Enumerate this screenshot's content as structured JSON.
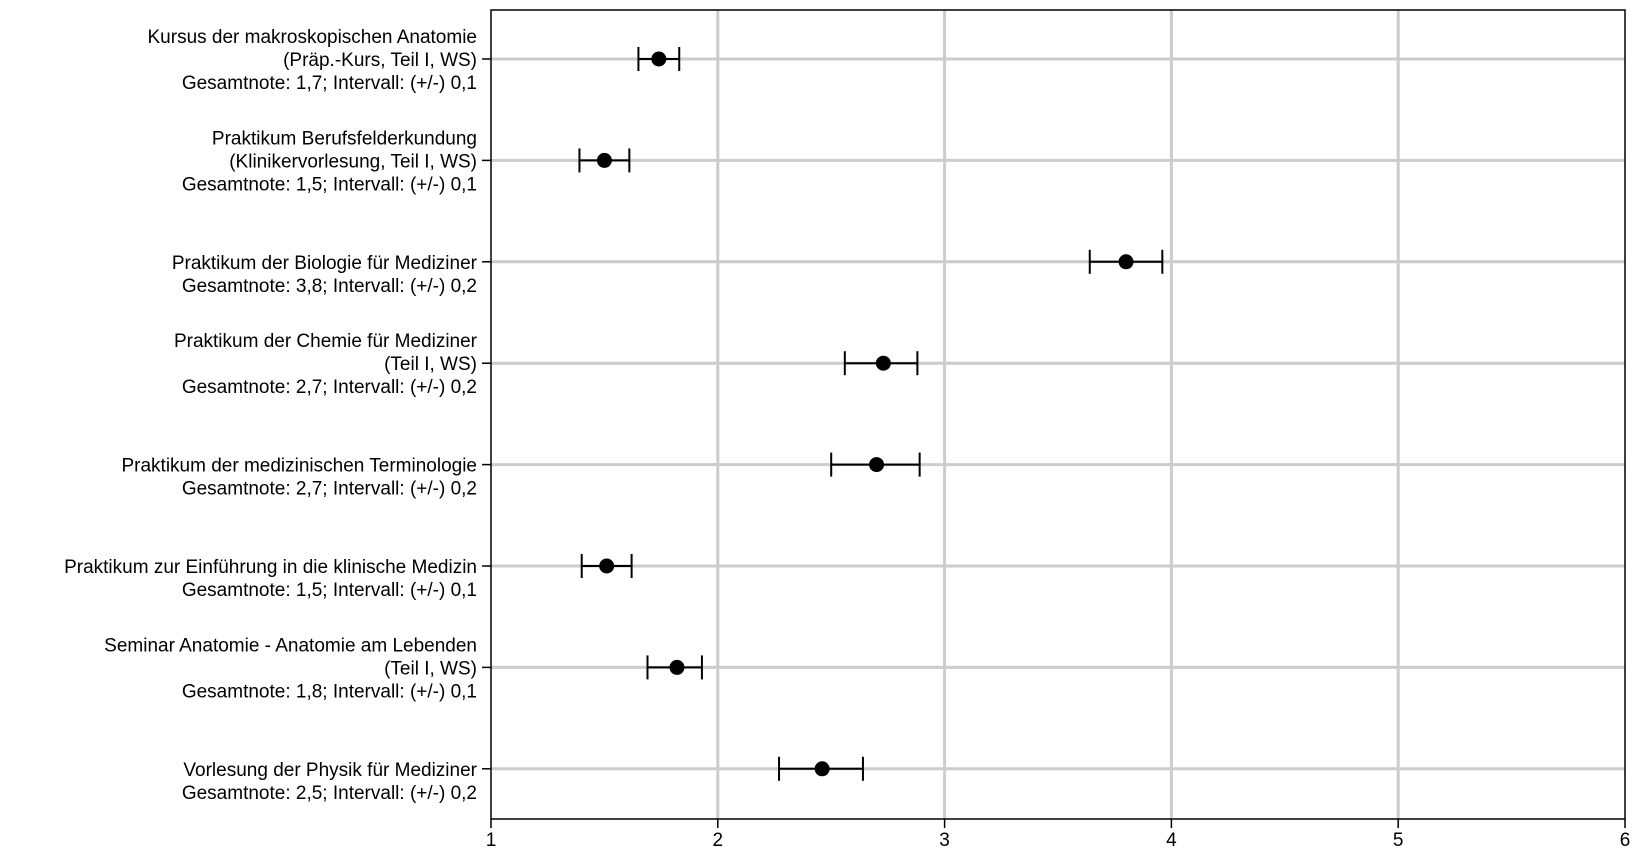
{
  "chart_data": {
    "type": "scatter",
    "xlim": [
      1,
      6
    ],
    "x_ticks": [
      "1",
      "2",
      "3",
      "4",
      "5",
      "6"
    ],
    "grid": true,
    "items": [
      {
        "label_lines": [
          "Kursus der makroskopischen Anatomie",
          "(Präp.-Kurs, Teil I, WS)",
          "Gesamtnote: 1,7;  Intervall: (+/-) 0,1"
        ],
        "value": 1.74,
        "low": 1.65,
        "high": 1.83
      },
      {
        "label_lines": [
          "Praktikum Berufsfelderkundung",
          "(Klinikervorlesung, Teil I, WS)",
          "Gesamtnote: 1,5;  Intervall: (+/-) 0,1"
        ],
        "value": 1.5,
        "low": 1.39,
        "high": 1.61
      },
      {
        "label_lines": [
          "Praktikum der Biologie für Mediziner",
          "Gesamtnote: 3,8;  Intervall: (+/-) 0,2"
        ],
        "value": 3.8,
        "low": 3.64,
        "high": 3.96
      },
      {
        "label_lines": [
          "Praktikum der Chemie für Mediziner",
          "(Teil I, WS)",
          "Gesamtnote: 2,7;  Intervall: (+/-) 0,2"
        ],
        "value": 2.73,
        "low": 2.56,
        "high": 2.88
      },
      {
        "label_lines": [
          "Praktikum der medizinischen Terminologie",
          "Gesamtnote: 2,7;  Intervall: (+/-) 0,2"
        ],
        "value": 2.7,
        "low": 2.5,
        "high": 2.89
      },
      {
        "label_lines": [
          "Praktikum zur Einführung in die klinische Medizin",
          "Gesamtnote: 1,5;  Intervall: (+/-) 0,1"
        ],
        "value": 1.51,
        "low": 1.4,
        "high": 1.62
      },
      {
        "label_lines": [
          "Seminar Anatomie - Anatomie am Lebenden",
          "(Teil I, WS)",
          "Gesamtnote: 1,8;  Intervall: (+/-) 0,1"
        ],
        "value": 1.82,
        "low": 1.69,
        "high": 1.93
      },
      {
        "label_lines": [
          "Vorlesung der Physik für Mediziner",
          "Gesamtnote: 2,5;  Intervall: (+/-) 0,2"
        ],
        "value": 2.46,
        "low": 2.27,
        "high": 2.64
      }
    ],
    "colors": {
      "grid": "#cccccc",
      "axis": "#000000",
      "marker": "#000000"
    }
  }
}
